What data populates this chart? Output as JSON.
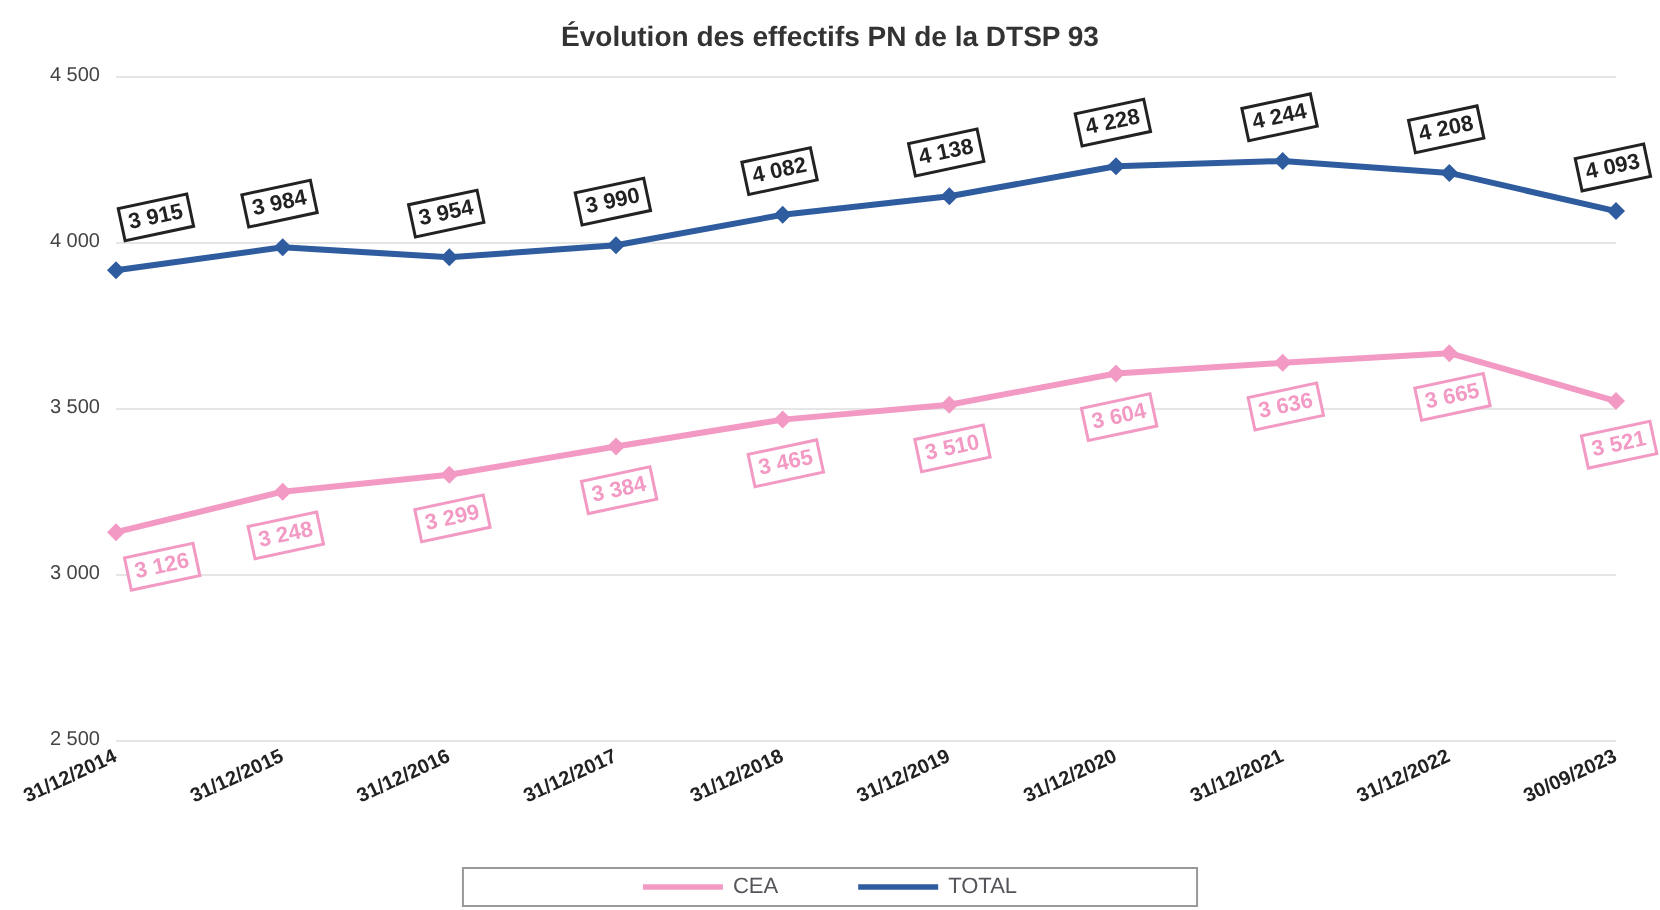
{
  "chart_data": {
    "type": "line",
    "title": "Évolution des effectifs PN de la DTSP 93",
    "categories": [
      "31/12/2014",
      "31/12/2015",
      "31/12/2016",
      "31/12/2017",
      "31/12/2018",
      "31/12/2019",
      "31/12/2020",
      "31/12/2021",
      "31/12/2022",
      "30/09/2023"
    ],
    "series": [
      {
        "name": "CEA",
        "color": "#f29ac4",
        "values": [
          3126,
          3248,
          3299,
          3384,
          3465,
          3510,
          3604,
          3636,
          3665,
          3521
        ],
        "value_labels": [
          "3 126",
          "3 248",
          "3 299",
          "3 384",
          "3 465",
          "3 510",
          "3 604",
          "3 636",
          "3 665",
          "3 521"
        ]
      },
      {
        "name": "TOTAL",
        "color": "#2e5c9e",
        "values": [
          3915,
          3984,
          3954,
          3990,
          4082,
          4138,
          4228,
          4244,
          4208,
          4093
        ],
        "value_labels": [
          "3 915",
          "3 984",
          "3 954",
          "3 990",
          "4 082",
          "4 138",
          "4 228",
          "4 244",
          "4 208",
          "4 093"
        ]
      }
    ],
    "ylim": [
      2500,
      4500
    ],
    "yticks": [
      {
        "value": 2500,
        "label": "2 500"
      },
      {
        "value": 3000,
        "label": "3 000"
      },
      {
        "value": 3500,
        "label": "3 500"
      },
      {
        "value": 4000,
        "label": "4 000"
      },
      {
        "value": 4500,
        "label": "4 500"
      }
    ],
    "grid": "y",
    "legend": "bottom",
    "marker": "diamond",
    "line_style": "solid"
  }
}
